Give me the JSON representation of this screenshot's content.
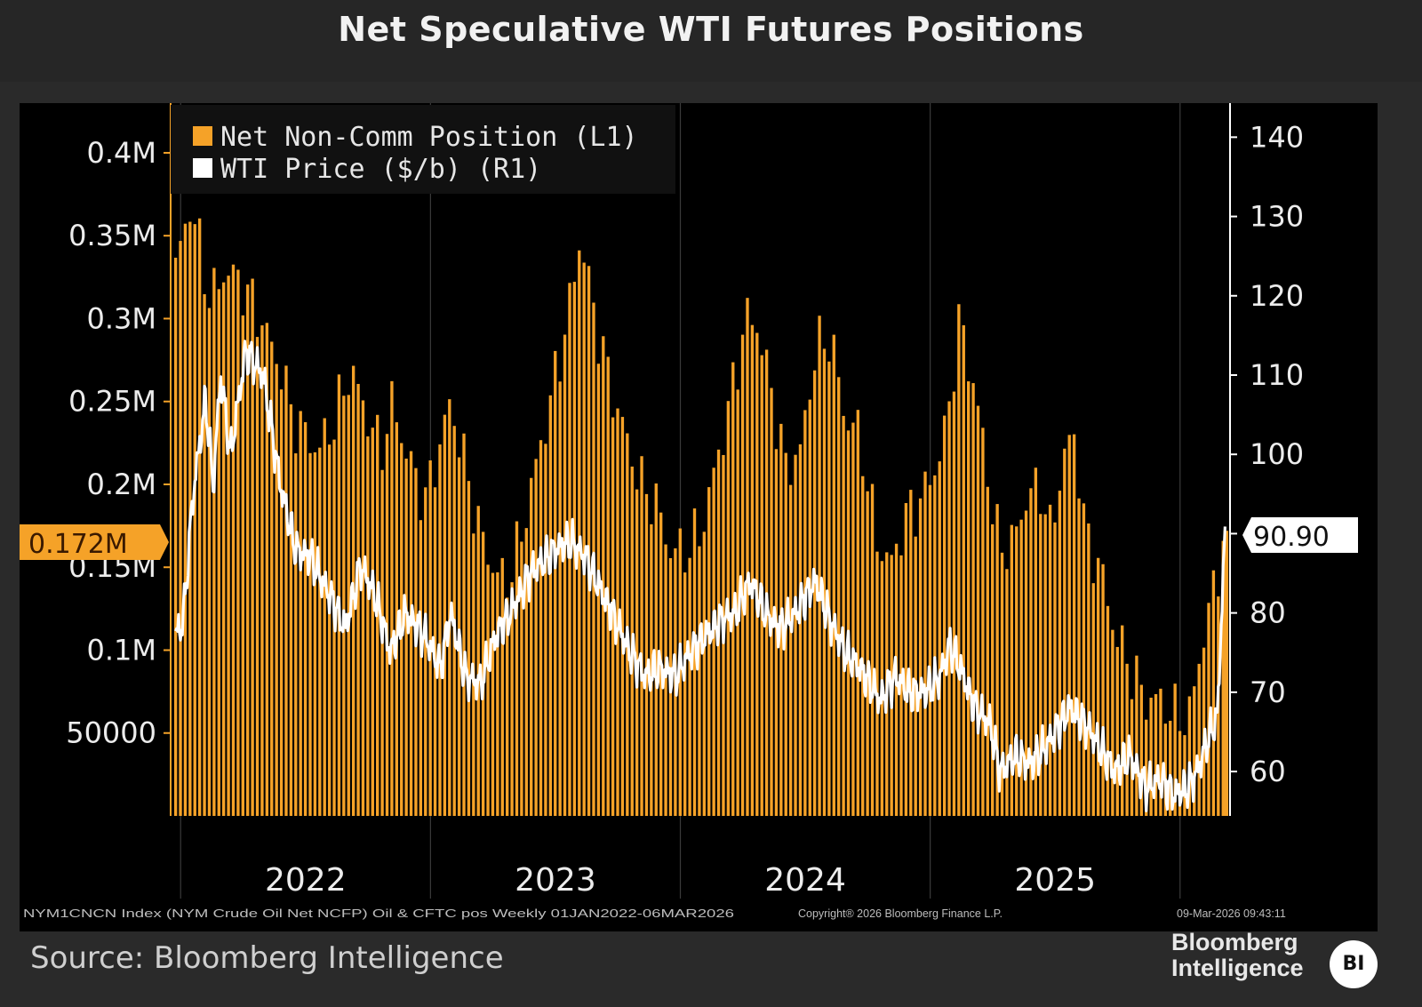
{
  "title": "Net Speculative WTI Futures Positions",
  "colors": {
    "bars": "#f5a228",
    "price_line": "#ffffff",
    "background": "#000000",
    "header": "#262626",
    "grid": "#3a3a3a"
  },
  "chart_data": {
    "type": "bar",
    "title": "Net Speculative WTI Futures Positions",
    "legend": {
      "items": [
        "Net Non-Comm Position (L1)",
        "WTI Price ($/b) (R1)"
      ],
      "placement": "top-left"
    },
    "left_axis": {
      "ylim": [
        0,
        0.43
      ],
      "unit": "M",
      "ticks": [
        0.05,
        0.1,
        0.15,
        0.2,
        0.25,
        0.3,
        0.35,
        0.4
      ],
      "tick_labels": [
        "50000",
        "0.1M",
        "0.15M",
        "0.2M",
        "0.25M",
        "0.3M",
        "0.35M",
        "0.4M"
      ],
      "last_value_label": "0.172M",
      "last_value": 0.172
    },
    "right_axis": {
      "ylim": [
        54.4,
        144.3
      ],
      "ticks": [
        60,
        70,
        80,
        90,
        100,
        110,
        120,
        130,
        140
      ],
      "tick_labels": [
        "60",
        "70",
        "80",
        "90",
        "100",
        "110",
        "120",
        "130",
        "140"
      ],
      "last_value_label": "90.90",
      "last_value": 90.9
    },
    "x_axis": {
      "range_years": [
        2021.96,
        2026.2
      ],
      "year_labels": [
        "2022",
        "2023",
        "2024",
        "2025"
      ],
      "year_label_positions": [
        2022.5,
        2023.5,
        2024.5,
        2025.5
      ],
      "year_boundaries": [
        2022,
        2023,
        2024,
        2025,
        2026
      ]
    },
    "series": [
      {
        "name": "Net Non-Comm Position (L1)",
        "type": "bar",
        "unit": "contracts (millions)",
        "frequency": "weekly",
        "keyframes": [
          [
            2021.98,
            0.33
          ],
          [
            2022.04,
            0.37
          ],
          [
            2022.08,
            0.34
          ],
          [
            2022.12,
            0.31
          ],
          [
            2022.18,
            0.33
          ],
          [
            2022.25,
            0.32
          ],
          [
            2022.32,
            0.3
          ],
          [
            2022.4,
            0.27
          ],
          [
            2022.45,
            0.24
          ],
          [
            2022.5,
            0.23
          ],
          [
            2022.55,
            0.22
          ],
          [
            2022.62,
            0.24
          ],
          [
            2022.68,
            0.27
          ],
          [
            2022.75,
            0.24
          ],
          [
            2022.8,
            0.22
          ],
          [
            2022.85,
            0.25
          ],
          [
            2022.9,
            0.22
          ],
          [
            2022.98,
            0.19
          ],
          [
            2023.08,
            0.25
          ],
          [
            2023.14,
            0.21
          ],
          [
            2023.2,
            0.17
          ],
          [
            2023.25,
            0.15
          ],
          [
            2023.3,
            0.14
          ],
          [
            2023.35,
            0.16
          ],
          [
            2023.42,
            0.21
          ],
          [
            2023.48,
            0.25
          ],
          [
            2023.56,
            0.31
          ],
          [
            2023.6,
            0.35
          ],
          [
            2023.66,
            0.3
          ],
          [
            2023.72,
            0.26
          ],
          [
            2023.78,
            0.23
          ],
          [
            2023.84,
            0.2
          ],
          [
            2023.9,
            0.19
          ],
          [
            2023.96,
            0.16
          ],
          [
            2024.02,
            0.16
          ],
          [
            2024.08,
            0.17
          ],
          [
            2024.14,
            0.21
          ],
          [
            2024.2,
            0.25
          ],
          [
            2024.26,
            0.3
          ],
          [
            2024.3,
            0.3
          ],
          [
            2024.36,
            0.26
          ],
          [
            2024.42,
            0.21
          ],
          [
            2024.48,
            0.22
          ],
          [
            2024.54,
            0.28
          ],
          [
            2024.6,
            0.29
          ],
          [
            2024.66,
            0.24
          ],
          [
            2024.72,
            0.23
          ],
          [
            2024.78,
            0.17
          ],
          [
            2024.84,
            0.15
          ],
          [
            2024.9,
            0.18
          ],
          [
            2024.96,
            0.19
          ],
          [
            2025.02,
            0.21
          ],
          [
            2025.06,
            0.23
          ],
          [
            2025.1,
            0.28
          ],
          [
            2025.12,
            0.3
          ],
          [
            2025.16,
            0.27
          ],
          [
            2025.22,
            0.22
          ],
          [
            2025.26,
            0.17
          ],
          [
            2025.32,
            0.16
          ],
          [
            2025.38,
            0.19
          ],
          [
            2025.44,
            0.2
          ],
          [
            2025.48,
            0.17
          ],
          [
            2025.54,
            0.22
          ],
          [
            2025.58,
            0.23
          ],
          [
            2025.62,
            0.17
          ],
          [
            2025.68,
            0.15
          ],
          [
            2025.74,
            0.11
          ],
          [
            2025.8,
            0.09
          ],
          [
            2025.86,
            0.07
          ],
          [
            2025.92,
            0.07
          ],
          [
            2025.98,
            0.06
          ],
          [
            2026.04,
            0.06
          ],
          [
            2026.07,
            0.09
          ],
          [
            2026.11,
            0.12
          ],
          [
            2026.14,
            0.14
          ],
          [
            2026.18,
            0.172
          ]
        ]
      },
      {
        "name": "WTI Price ($/b) (R1)",
        "type": "line",
        "unit": "$/b",
        "frequency": "daily",
        "keyframes": [
          [
            2021.98,
            77
          ],
          [
            2022.01,
            79
          ],
          [
            2022.05,
            95
          ],
          [
            2022.1,
            107
          ],
          [
            2022.13,
            96
          ],
          [
            2022.16,
            110
          ],
          [
            2022.2,
            100
          ],
          [
            2022.26,
            113
          ],
          [
            2022.33,
            110
          ],
          [
            2022.4,
            96
          ],
          [
            2022.46,
            88
          ],
          [
            2022.52,
            87
          ],
          [
            2022.6,
            82
          ],
          [
            2022.66,
            78
          ],
          [
            2022.72,
            86
          ],
          [
            2022.78,
            82
          ],
          [
            2022.84,
            75
          ],
          [
            2022.9,
            80
          ],
          [
            2022.98,
            77
          ],
          [
            2023.04,
            73
          ],
          [
            2023.08,
            80
          ],
          [
            2023.14,
            72
          ],
          [
            2023.2,
            71
          ],
          [
            2023.26,
            77
          ],
          [
            2023.32,
            80
          ],
          [
            2023.4,
            85
          ],
          [
            2023.5,
            88
          ],
          [
            2023.56,
            89
          ],
          [
            2023.62,
            87
          ],
          [
            2023.68,
            83
          ],
          [
            2023.74,
            79
          ],
          [
            2023.8,
            75
          ],
          [
            2023.86,
            72
          ],
          [
            2023.92,
            73
          ],
          [
            2023.98,
            72
          ],
          [
            2024.04,
            75
          ],
          [
            2024.1,
            77
          ],
          [
            2024.16,
            79
          ],
          [
            2024.22,
            80
          ],
          [
            2024.28,
            84
          ],
          [
            2024.34,
            80
          ],
          [
            2024.4,
            78
          ],
          [
            2024.46,
            80
          ],
          [
            2024.54,
            84
          ],
          [
            2024.6,
            79
          ],
          [
            2024.66,
            75
          ],
          [
            2024.72,
            73
          ],
          [
            2024.8,
            69
          ],
          [
            2024.86,
            72
          ],
          [
            2024.92,
            70
          ],
          [
            2024.98,
            70
          ],
          [
            2025.04,
            72
          ],
          [
            2025.08,
            76
          ],
          [
            2025.12,
            73
          ],
          [
            2025.18,
            68
          ],
          [
            2025.24,
            66
          ],
          [
            2025.28,
            60
          ],
          [
            2025.34,
            62
          ],
          [
            2025.4,
            61
          ],
          [
            2025.46,
            63
          ],
          [
            2025.52,
            66
          ],
          [
            2025.56,
            68
          ],
          [
            2025.62,
            66
          ],
          [
            2025.68,
            63
          ],
          [
            2025.74,
            60
          ],
          [
            2025.8,
            62
          ],
          [
            2025.86,
            58
          ],
          [
            2025.92,
            59
          ],
          [
            2025.98,
            57
          ],
          [
            2026.03,
            58
          ],
          [
            2026.07,
            60
          ],
          [
            2026.11,
            64
          ],
          [
            2026.15,
            67
          ],
          [
            2026.18,
            90.9
          ]
        ]
      }
    ],
    "x_label": "",
    "y_label_left": "",
    "y_label_right": ""
  },
  "footer": {
    "index_note": "NYM1CNCN Index (NYM Crude Oil Net NCFP) Oil & CFTC pos Weekly 01JAN2022-06MAR2026",
    "copyright": "Copyright® 2026 Bloomberg Finance L.P.",
    "timestamp": "09-Mar-2026 09:43:11",
    "source": "Source: Bloomberg Intelligence",
    "brand_line1": "Bloomberg",
    "brand_line2": "Intelligence",
    "brand_badge": "BI"
  }
}
